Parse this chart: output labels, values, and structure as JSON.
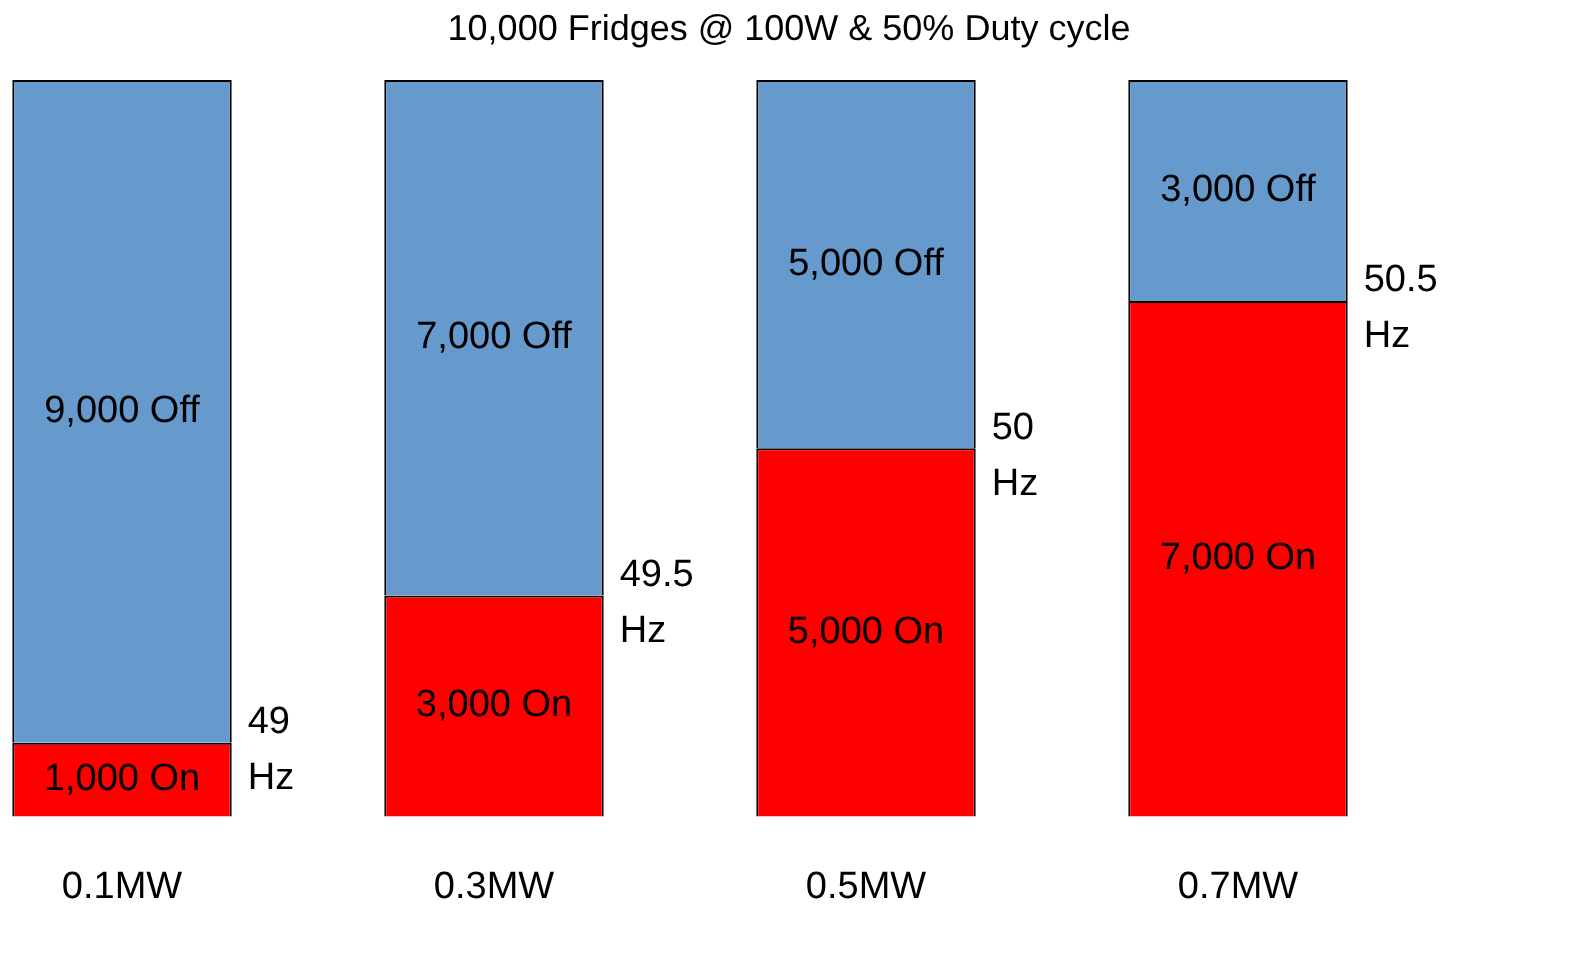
{
  "chart_data": {
    "type": "bar",
    "title": "10,000 Fridges @ 100W & 50% Duty cycle",
    "categories": [
      "0.1MW",
      "0.3MW",
      "0.5MW",
      "0.7MW"
    ],
    "stacked": true,
    "ylim": [
      0,
      10000
    ],
    "tick_labels": "x",
    "grid": false,
    "legend": false,
    "series": [
      {
        "color": "#ff0000",
        "values": [
          1000,
          3000,
          5000,
          7000
        ],
        "value_labels": [
          "1,000 On",
          "3,000 On",
          "5,000 On",
          "7,000 On"
        ]
      },
      {
        "color": "#6699cc",
        "values": [
          9000,
          7000,
          5000,
          3000
        ],
        "value_labels": [
          "9,000 Off",
          "7,000 Off",
          "5,000 Off",
          "3,000 Off"
        ]
      }
    ],
    "annotations": [
      "49 Hz",
      "49.5 Hz",
      "50 Hz",
      "50.5 Hz"
    ]
  }
}
